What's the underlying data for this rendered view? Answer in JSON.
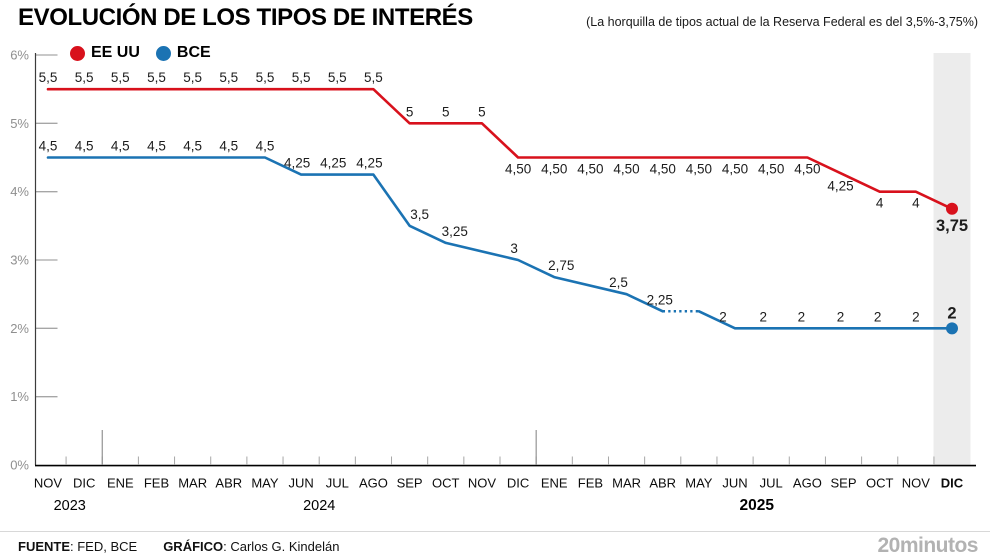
{
  "header": {
    "title": "EVOLUCIÓN DE LOS TIPOS DE INTERÉS",
    "subtitle": "(La horquilla de tipos actual de la Reserva Federal es del 3,5%-3,75%)"
  },
  "footer": {
    "source_label": "FUENTE",
    "source_value": ": FED, BCE",
    "credit_label": "GRÁFICO",
    "credit_value": ": Carlos G. Kindelán",
    "brand": "20minutos"
  },
  "chart_data": {
    "type": "line",
    "title": "EVOLUCIÓN DE LOS TIPOS DE INTERÉS",
    "subtitle": "(La horquilla de tipos actual de la Reserva Federal es del 3,5%-3,75%)",
    "legend_position": "top-left",
    "grid": "off",
    "x_axis": {
      "months": [
        "NOV",
        "DIC",
        "ENE",
        "FEB",
        "MAR",
        "ABR",
        "MAY",
        "JUN",
        "JUL",
        "AGO",
        "SEP",
        "OCT",
        "NOV",
        "DIC",
        "ENE",
        "FEB",
        "MAR",
        "ABR",
        "MAY",
        "JUN",
        "JUL",
        "AGO",
        "SEP",
        "OCT",
        "NOV",
        "DIC"
      ],
      "bold_last_month": true,
      "years": [
        {
          "label": "2023",
          "at": 0.6,
          "bold": false
        },
        {
          "label": "2024",
          "at": 7.5,
          "bold": false
        },
        {
          "label": "2025",
          "at": 19.6,
          "bold": true
        }
      ],
      "year_dividers": [
        1.5,
        13.5
      ]
    },
    "y_axis": {
      "min": 0,
      "max": 6,
      "tick_labels": [
        "6%",
        "5%",
        "4%",
        "3%",
        "2%",
        "1%",
        "0%"
      ],
      "unit": "%"
    },
    "highlight_index": 25,
    "colors": {
      "band": "#ececec",
      "value_label": "#1d1d1d",
      "month_label": "#0d0d0d",
      "y_label_gray": "#8f8f8f",
      "tick_gray": "#a6a6a6",
      "axis_dark": "#3c3c3c",
      "baseline_black": "#000000"
    },
    "series": [
      {
        "id": "eeuu",
        "name": "EE UU",
        "color": "#d8111c",
        "end_dot": true,
        "values": [
          5.5,
          5.5,
          5.5,
          5.5,
          5.5,
          5.5,
          5.5,
          5.5,
          5.5,
          5.5,
          5,
          5,
          5,
          4.5,
          4.5,
          4.5,
          4.5,
          4.5,
          4.5,
          4.5,
          4.5,
          4.5,
          4.25,
          4,
          4,
          3.75
        ],
        "labels": [
          {
            "i": 0,
            "t": "5,5",
            "s": "a"
          },
          {
            "i": 1,
            "t": "5,5",
            "s": "a"
          },
          {
            "i": 2,
            "t": "5,5",
            "s": "a"
          },
          {
            "i": 3,
            "t": "5,5",
            "s": "a"
          },
          {
            "i": 4,
            "t": "5,5",
            "s": "a"
          },
          {
            "i": 5,
            "t": "5,5",
            "s": "a"
          },
          {
            "i": 6,
            "t": "5,5",
            "s": "a"
          },
          {
            "i": 7,
            "t": "5,5",
            "s": "a"
          },
          {
            "i": 8,
            "t": "5,5",
            "s": "a"
          },
          {
            "i": 9,
            "t": "5,5",
            "s": "a"
          },
          {
            "i": 10,
            "t": "5",
            "s": "a"
          },
          {
            "i": 11,
            "t": "5",
            "s": "a"
          },
          {
            "i": 12,
            "t": "5",
            "s": "a"
          },
          {
            "i": 13,
            "t": "4,50",
            "s": "b"
          },
          {
            "i": 14,
            "t": "4,50",
            "s": "b"
          },
          {
            "i": 15,
            "t": "4,50",
            "s": "b"
          },
          {
            "i": 16,
            "t": "4,50",
            "s": "b"
          },
          {
            "i": 17,
            "t": "4,50",
            "s": "b"
          },
          {
            "i": 18,
            "t": "4,50",
            "s": "b"
          },
          {
            "i": 19,
            "t": "4,50",
            "s": "b"
          },
          {
            "i": 20,
            "t": "4,50",
            "s": "b"
          },
          {
            "i": 21,
            "t": "4,50",
            "s": "b"
          },
          {
            "i": 22,
            "t": "4,25",
            "s": "b",
            "o": -3
          },
          {
            "i": 23,
            "t": "4",
            "s": "b"
          },
          {
            "i": 24,
            "t": "4",
            "s": "b"
          },
          {
            "i": 25,
            "t": "3,75",
            "s": "b",
            "bold": true
          }
        ]
      },
      {
        "id": "bce",
        "name": "BCE",
        "color": "#1b73b3",
        "end_dot": true,
        "values": [
          4.5,
          4.5,
          4.5,
          4.5,
          4.5,
          4.5,
          4.5,
          4.25,
          4.25,
          4.25,
          3.5,
          3.25,
          null,
          3,
          2.75,
          null,
          2.5,
          2.25,
          2.25,
          2,
          2,
          2,
          2,
          2,
          2,
          2
        ],
        "dashed_segments": [
          [
            17,
            18
          ]
        ],
        "labels": [
          {
            "i": 0,
            "t": "4,5",
            "s": "a"
          },
          {
            "i": 1,
            "t": "4,5",
            "s": "a"
          },
          {
            "i": 2,
            "t": "4,5",
            "s": "a"
          },
          {
            "i": 3,
            "t": "4,5",
            "s": "a"
          },
          {
            "i": 4,
            "t": "4,5",
            "s": "a"
          },
          {
            "i": 5,
            "t": "4,5",
            "s": "a"
          },
          {
            "i": 6,
            "t": "4,5",
            "s": "a"
          },
          {
            "i": 7,
            "t": "4,25",
            "s": "a",
            "o": -4
          },
          {
            "i": 8,
            "t": "4,25",
            "s": "a",
            "o": -4
          },
          {
            "i": 9,
            "t": "4,25",
            "s": "a",
            "o": -4
          },
          {
            "i": 10,
            "t": "3,5",
            "s": "a",
            "o": 10
          },
          {
            "i": 11,
            "t": "3,25",
            "s": "a",
            "o": 9
          },
          {
            "i": 13,
            "t": "3",
            "s": "a",
            "o": -4
          },
          {
            "i": 14,
            "t": "2,75",
            "s": "a",
            "o": 7
          },
          {
            "i": 16,
            "t": "2,5",
            "s": "a",
            "o": -8
          },
          {
            "i": 17,
            "t": "2,25",
            "s": "a",
            "o": -3
          },
          {
            "i": 19,
            "t": "2",
            "s": "a",
            "o": -12
          },
          {
            "i": 20,
            "t": "2",
            "s": "a",
            "o": -8
          },
          {
            "i": 21,
            "t": "2",
            "s": "a",
            "o": -6
          },
          {
            "i": 22,
            "t": "2",
            "s": "a",
            "o": -3
          },
          {
            "i": 23,
            "t": "2",
            "s": "a",
            "o": -2
          },
          {
            "i": 24,
            "t": "2",
            "s": "a"
          },
          {
            "i": 25,
            "t": "2",
            "s": "a",
            "bold": true
          }
        ]
      }
    ]
  }
}
